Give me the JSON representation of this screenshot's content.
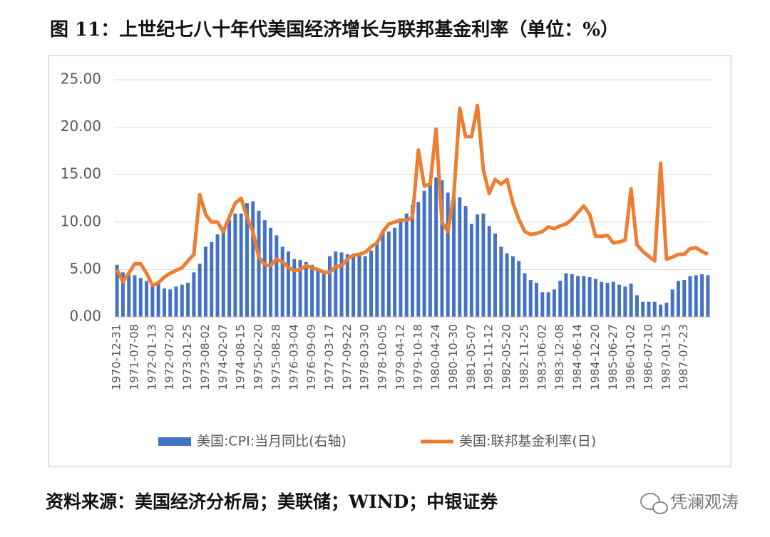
{
  "chart_data": {
    "type": "combo",
    "title": "图 11：上世纪七八十年代美国经济增长与联邦基金利率（单位：%）",
    "source": "资料来源：美国经济分析局；美联储；WIND；中银证券",
    "watermark": "凭澜观涛",
    "ylim": [
      0,
      25
    ],
    "yticks": [
      {
        "value": 0,
        "label": "0.00"
      },
      {
        "value": 5,
        "label": "5.00"
      },
      {
        "value": 10,
        "label": "10.00"
      },
      {
        "value": 15,
        "label": "15.00"
      },
      {
        "value": 20,
        "label": "20.00"
      },
      {
        "value": 25,
        "label": "25.00"
      }
    ],
    "grid": true,
    "legend": "bottom",
    "categories": [
      "1970-12-31",
      null,
      null,
      "1971-07-08",
      null,
      null,
      "1972-01-13",
      null,
      null,
      "1972-07-20",
      null,
      null,
      "1973-01-25",
      null,
      null,
      "1973-08-02",
      null,
      null,
      "1974-02-07",
      null,
      null,
      "1974-08-15",
      null,
      null,
      "1975-02-20",
      null,
      null,
      "1975-08-28",
      null,
      null,
      "1976-03-04",
      null,
      null,
      "1976-09-09",
      null,
      null,
      "1977-03-17",
      null,
      null,
      "1977-09-22",
      null,
      null,
      "1978-03-30",
      null,
      null,
      "1978-10-05",
      null,
      null,
      "1979-04-12",
      null,
      null,
      "1979-10-18",
      null,
      null,
      "1980-04-24",
      null,
      null,
      "1980-10-30",
      null,
      null,
      "1981-05-07",
      null,
      null,
      "1981-11-12",
      null,
      null,
      "1982-05-20",
      null,
      null,
      "1982-11-25",
      null,
      null,
      "1983-06-02",
      null,
      null,
      "1983-12-08",
      null,
      null,
      "1984-06-14",
      null,
      null,
      "1984-12-20",
      null,
      null,
      "1985-06-27",
      null,
      null,
      "1986-01-02",
      null,
      null,
      "1986-07-10",
      null,
      null,
      "1987-01-15",
      null,
      null,
      "1987-07-23",
      null,
      null,
      null,
      null
    ],
    "series": [
      {
        "name": "美国:CPI:当月同比(右轴)",
        "type": "bar",
        "color": "#4472c4",
        "values": [
          5.5,
          4.7,
          4.4,
          4.4,
          4.1,
          3.8,
          3.3,
          3.5,
          3.0,
          2.9,
          3.2,
          3.4,
          3.6,
          4.7,
          5.6,
          7.4,
          7.9,
          8.7,
          9.4,
          10.2,
          10.9,
          10.9,
          12.0,
          12.2,
          11.2,
          10.2,
          9.4,
          8.6,
          7.4,
          6.9,
          6.1,
          6.0,
          5.8,
          5.5,
          5.0,
          4.9,
          6.4,
          6.9,
          6.8,
          6.6,
          6.6,
          6.6,
          6.4,
          7.0,
          7.8,
          8.9,
          9.0,
          9.4,
          10.4,
          10.9,
          11.8,
          12.1,
          13.3,
          14.2,
          14.7,
          14.4,
          13.1,
          12.7,
          12.6,
          11.7,
          9.8,
          10.8,
          10.9,
          9.6,
          8.8,
          7.4,
          6.7,
          6.4,
          5.9,
          4.6,
          3.9,
          3.6,
          2.6,
          2.6,
          2.9,
          3.8,
          4.6,
          4.5,
          4.3,
          4.3,
          4.2,
          4.0,
          3.7,
          3.6,
          3.7,
          3.4,
          3.2,
          3.5,
          2.3,
          1.6,
          1.6,
          1.6,
          1.3,
          1.5,
          2.9,
          3.8,
          3.9,
          4.3,
          4.4,
          4.5,
          4.4
        ]
      },
      {
        "name": "美国:联邦基金利率(日)",
        "type": "line",
        "color": "#ed7d31",
        "values": [
          5.0,
          3.7,
          4.6,
          5.6,
          5.6,
          4.6,
          3.3,
          3.6,
          4.2,
          4.6,
          4.9,
          5.2,
          5.9,
          6.6,
          12.9,
          10.8,
          10.0,
          10.0,
          9.0,
          10.5,
          12.0,
          12.5,
          10.5,
          9.0,
          6.3,
          5.5,
          5.4,
          6.1,
          5.8,
          5.2,
          4.9,
          5.0,
          5.4,
          5.2,
          5.0,
          4.7,
          4.7,
          5.3,
          5.4,
          6.1,
          6.5,
          6.6,
          6.8,
          7.4,
          7.8,
          9.0,
          9.8,
          10.0,
          10.2,
          10.2,
          10.5,
          17.6,
          13.8,
          14.0,
          19.8,
          10.0,
          9.0,
          12.8,
          22.0,
          19.0,
          19.0,
          22.3,
          15.5,
          13.0,
          14.5,
          14.0,
          14.5,
          12.0,
          10.3,
          9.0,
          8.7,
          8.8,
          9.0,
          9.5,
          9.3,
          9.6,
          9.8,
          10.3,
          11.0,
          11.7,
          10.8,
          8.5,
          8.5,
          8.6,
          7.8,
          7.9,
          8.1,
          13.5,
          7.6,
          6.9,
          6.4,
          5.9,
          16.2,
          6.1,
          6.3,
          6.6,
          6.6,
          7.2,
          7.3,
          6.9,
          6.6
        ]
      }
    ]
  }
}
